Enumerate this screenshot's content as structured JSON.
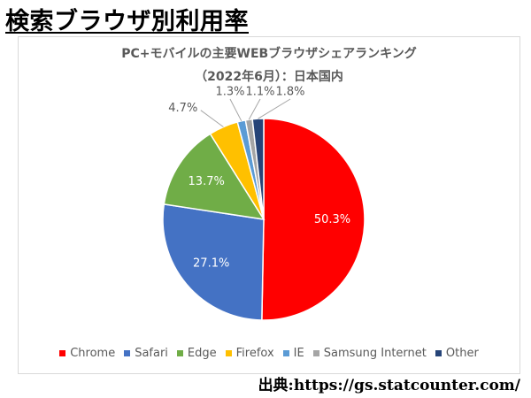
{
  "page": {
    "heading": "検索ブラウザ別利用率",
    "source": "出典:https://gs.statcounter.com/"
  },
  "chart_data": {
    "type": "pie",
    "title": "PC+モバイルの主要WEBブラウザシェアランキング",
    "subtitle": "（2022年6月）：日本国内",
    "categories": [
      "Chrome",
      "Safari",
      "Edge",
      "Firefox",
      "IE",
      "Samsung Internet",
      "Other"
    ],
    "values": [
      50.3,
      27.1,
      13.7,
      4.7,
      1.3,
      1.1,
      1.8
    ],
    "data_labels": [
      "50.3%",
      "27.1%",
      "13.7%",
      "4.7%",
      "1.3%",
      "1.1%",
      "1.8%"
    ],
    "colors": [
      "#ff0000",
      "#4472c4",
      "#70ad47",
      "#ffc000",
      "#5b9bd5",
      "#a5a5a5",
      "#264478"
    ],
    "legend_position": "bottom",
    "start_angle_deg": 0,
    "direction": "clockwise"
  }
}
